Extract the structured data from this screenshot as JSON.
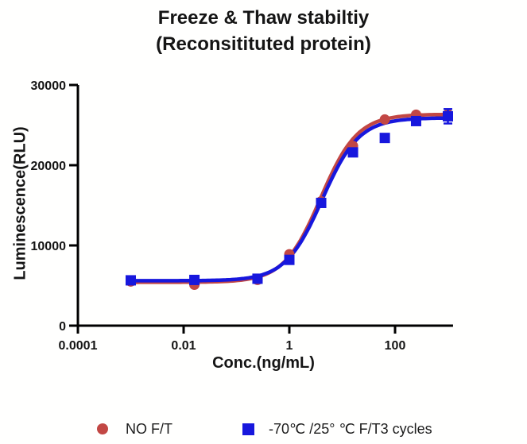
{
  "title": {
    "line1": "Freeze & Thaw stabiltiy",
    "line2": "(Reconsitituted protein)"
  },
  "chart_data": {
    "type": "scatter",
    "subtype": "dose-response sigmoid fit, log x-axis",
    "title": "Freeze & Thaw stabiltiy (Reconsitituted protein)",
    "xlabel": "Conc.(ng/mL)",
    "ylabel": "Luminescence(RLU)",
    "x_scale": "log",
    "xlim": [
      0.0001,
      1250
    ],
    "ylim": [
      0,
      30000
    ],
    "grid": false,
    "legend_position": "bottom",
    "x_ticks": [
      {
        "value": 0.0001,
        "label": "0.0001"
      },
      {
        "value": 0.01,
        "label": "0.01"
      },
      {
        "value": 1,
        "label": "1"
      },
      {
        "value": 100,
        "label": "100"
      }
    ],
    "y_ticks": [
      {
        "value": 0,
        "label": "0"
      },
      {
        "value": 10000,
        "label": "10000"
      },
      {
        "value": 20000,
        "label": "20000"
      },
      {
        "value": 30000,
        "label": "30000"
      }
    ],
    "axis_color": "#000000",
    "series": [
      {
        "name": "NO F/T",
        "marker": "circle",
        "color": "#c24744",
        "points": [
          {
            "x": 0.001,
            "y": 5500
          },
          {
            "x": 0.016,
            "y": 5100
          },
          {
            "x": 0.25,
            "y": 5700
          },
          {
            "x": 1,
            "y": 8900
          },
          {
            "x": 4,
            "y": 15500
          },
          {
            "x": 16,
            "y": 22400
          },
          {
            "x": 64,
            "y": 25700
          },
          {
            "x": 250,
            "y": 26300
          },
          {
            "x": 1000,
            "y": 26350
          }
        ],
        "fit": {
          "bottom": 5400,
          "top": 26350,
          "ec50": 3.9,
          "hill": 1.25
        }
      },
      {
        "name": "-70℃ /25° ℃ F/T3 cycles",
        "marker": "square",
        "color": "#1717dd",
        "points": [
          {
            "x": 0.001,
            "y": 5650
          },
          {
            "x": 0.016,
            "y": 5700
          },
          {
            "x": 0.25,
            "y": 5850
          },
          {
            "x": 1,
            "y": 8200
          },
          {
            "x": 4,
            "y": 15300
          },
          {
            "x": 16,
            "y": 21600
          },
          {
            "x": 64,
            "y": 23400
          },
          {
            "x": 250,
            "y": 25500
          },
          {
            "x": 1000,
            "y": 26100,
            "err": 900
          }
        ],
        "fit": {
          "bottom": 5600,
          "top": 25900,
          "ec50": 4.2,
          "hill": 1.25
        }
      }
    ]
  }
}
